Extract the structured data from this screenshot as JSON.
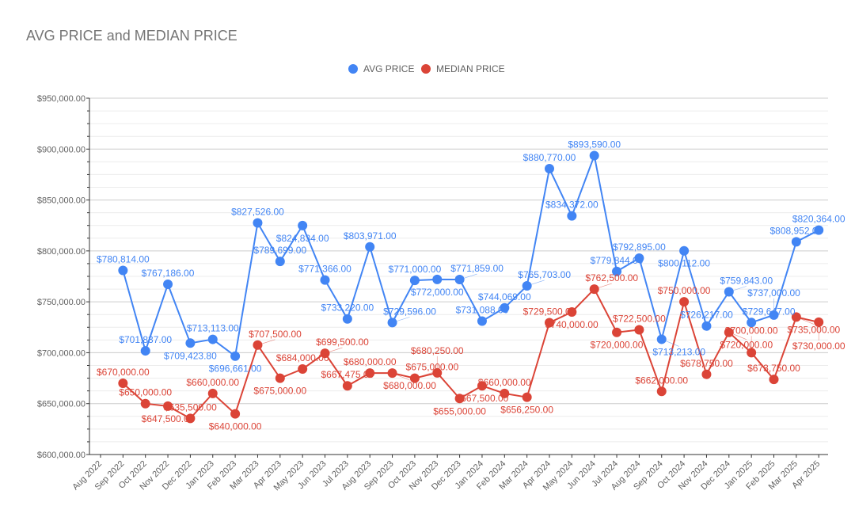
{
  "chart_data": {
    "type": "line",
    "title": "AVG PRICE and MEDIAN PRICE",
    "xlabel": "",
    "ylabel": "",
    "ylim": [
      600000,
      950000
    ],
    "yticks": [
      600000,
      650000,
      700000,
      750000,
      800000,
      850000,
      900000,
      950000
    ],
    "ytick_labels": [
      "$600,000.00",
      "$650,000.00",
      "$700,000.00",
      "$750,000.00",
      "$800,000.00",
      "$850,000.00",
      "$900,000.00",
      "$950,000.00"
    ],
    "legend_position": "top",
    "grid": true,
    "categories": [
      "Aug 2022",
      "Sep 2022",
      "Oct 2022",
      "Nov 2022",
      "Dec 2022",
      "Jan 2023",
      "Feb 2023",
      "Mar 2023",
      "Apr 2023",
      "May 2023",
      "Jun 2023",
      "Jul 2023",
      "Aug 2023",
      "Sep 2023",
      "Oct 2023",
      "Nov 2023",
      "Dec 2023",
      "Jan 2024",
      "Feb 2024",
      "Mar 2024",
      "Apr 2024",
      "May 2024",
      "Jun 2024",
      "Jul 2024",
      "Aug 2024",
      "Sep 2024",
      "Oct 2024",
      "Nov 2024",
      "Dec 2024",
      "Jan 2025",
      "Feb 2025",
      "Mar 2025",
      "Apr 2025"
    ],
    "series": [
      {
        "name": "AVG PRICE",
        "color": "#4285f4",
        "values": [
          null,
          780814,
          701837,
          767186,
          709423.8,
          713113,
          696661,
          827526,
          789699,
          824834,
          771366,
          733220,
          803971,
          729596,
          771000,
          772000,
          771859,
          731088,
          744069,
          765703,
          880770,
          834372,
          893590,
          779844,
          792895,
          713213,
          800112,
          726217,
          759843,
          729647,
          737000,
          808952,
          820364
        ]
      },
      {
        "name": "MEDIAN PRICE",
        "color": "#db4437",
        "values": [
          null,
          670000,
          650000,
          647500,
          635500,
          660000,
          640000,
          707500,
          675000,
          684000,
          699500,
          667475,
          680000,
          680000,
          675000,
          680250,
          655000,
          667500,
          660000,
          656250,
          729500,
          740000,
          762500,
          720000,
          722500,
          662000,
          750000,
          678750,
          720000,
          700000,
          673750,
          735000,
          730000
        ]
      }
    ]
  }
}
